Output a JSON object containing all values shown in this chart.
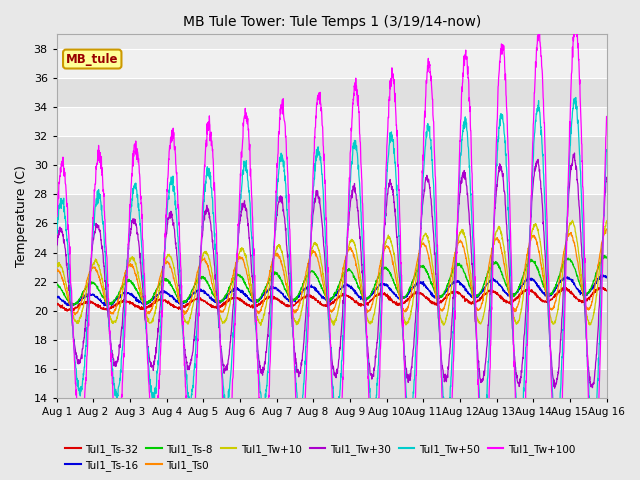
{
  "title": "MB Tule Tower: Tule Temps 1 (3/19/14-now)",
  "ylabel": "Temperature (C)",
  "ylim": [
    14,
    39
  ],
  "yticks": [
    14,
    16,
    18,
    20,
    22,
    24,
    26,
    28,
    30,
    32,
    34,
    36,
    38
  ],
  "x_tick_labels": [
    "Aug 1",
    "Aug 2",
    "Aug 3",
    "Aug 4",
    "Aug 5",
    "Aug 6",
    "Aug 7",
    "Aug 8",
    "Aug 9",
    "Aug 10",
    "Aug 11",
    "Aug 12",
    "Aug 13",
    "Aug 14",
    "Aug 15",
    "Aug 16"
  ],
  "fig_bg_color": "#e8e8e8",
  "band_colors": [
    "#e0e0e0",
    "#f0f0f0"
  ],
  "series": [
    {
      "name": "Tul1_Ts-32",
      "color": "#dd0000",
      "base": 20.3,
      "amp": 0.25,
      "phase": 0.0,
      "trend": 0.055
    },
    {
      "name": "Tul1_Ts-16",
      "color": "#0000dd",
      "base": 20.7,
      "amp": 0.35,
      "phase": 0.05,
      "trend": 0.07
    },
    {
      "name": "Tul1_Ts-8",
      "color": "#00cc00",
      "base": 21.1,
      "amp": 0.7,
      "phase": 0.1,
      "trend": 0.09
    },
    {
      "name": "Tul1_Ts0",
      "color": "#ff8800",
      "base": 21.3,
      "amp": 1.5,
      "phase": 0.15,
      "trend": 0.1
    },
    {
      "name": "Tul1_Tw+10",
      "color": "#cccc00",
      "base": 21.2,
      "amp": 2.0,
      "phase": 0.2,
      "trend": 0.1
    },
    {
      "name": "Tul1_Tw+30",
      "color": "#aa00cc",
      "base": 21.0,
      "amp": 4.5,
      "phase": 0.25,
      "trend": 0.12
    },
    {
      "name": "Tul1_Tw+50",
      "color": "#00cccc",
      "base": 21.0,
      "amp": 6.5,
      "phase": 0.28,
      "trend": 0.15
    },
    {
      "name": "Tul1_Tw+100",
      "color": "#ff00ff",
      "base": 21.0,
      "amp": 9.0,
      "phase": 0.3,
      "trend": 0.2
    }
  ],
  "legend_text": "MB_tule",
  "legend_color": "#990000",
  "legend_bg": "#ffff99",
  "legend_edge": "#cc9900"
}
